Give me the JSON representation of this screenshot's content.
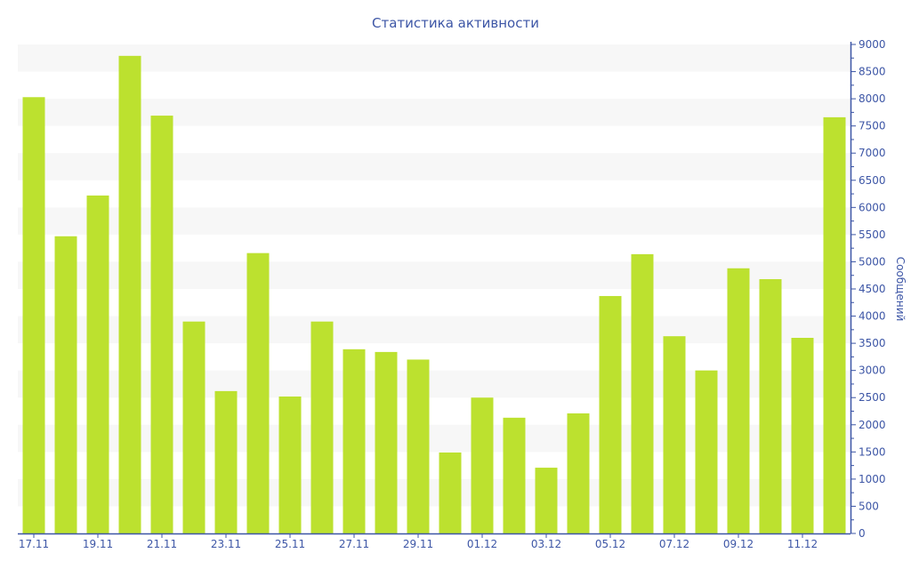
{
  "chart_data": {
    "type": "bar",
    "title": "Статистика активности",
    "xlabel": "",
    "ylabel": "Сообщений",
    "ylim": [
      0,
      9000
    ],
    "ytick_step": 500,
    "yaxis_position": "right",
    "grid": "alternating horizontal bands",
    "categories": [
      "17.11",
      "18.11",
      "19.11",
      "20.11",
      "21.11",
      "22.11",
      "23.11",
      "24.11",
      "25.11",
      "26.11",
      "27.11",
      "28.11",
      "29.11",
      "30.11",
      "01.12",
      "02.12",
      "03.12",
      "04.12",
      "05.12",
      "06.12",
      "07.12",
      "08.12",
      "09.12",
      "10.12",
      "11.12",
      "12.12"
    ],
    "visible_xtick_labels": [
      "17.11",
      "19.11",
      "21.11",
      "23.11",
      "25.11",
      "27.11",
      "29.11",
      "01.12",
      "03.12",
      "05.12",
      "07.12",
      "09.12",
      "11.12"
    ],
    "values": [
      8030,
      5470,
      6220,
      8790,
      7690,
      3900,
      2620,
      5160,
      2520,
      3900,
      3390,
      3340,
      3200,
      1490,
      2500,
      2130,
      1210,
      2210,
      4370,
      5140,
      3630,
      3000,
      4880,
      4680,
      3600,
      7660
    ],
    "colors": {
      "bar": "#bce12f",
      "axis": "#3d56a6",
      "band": "#f7f7f7",
      "title": "#3d56a6"
    }
  }
}
